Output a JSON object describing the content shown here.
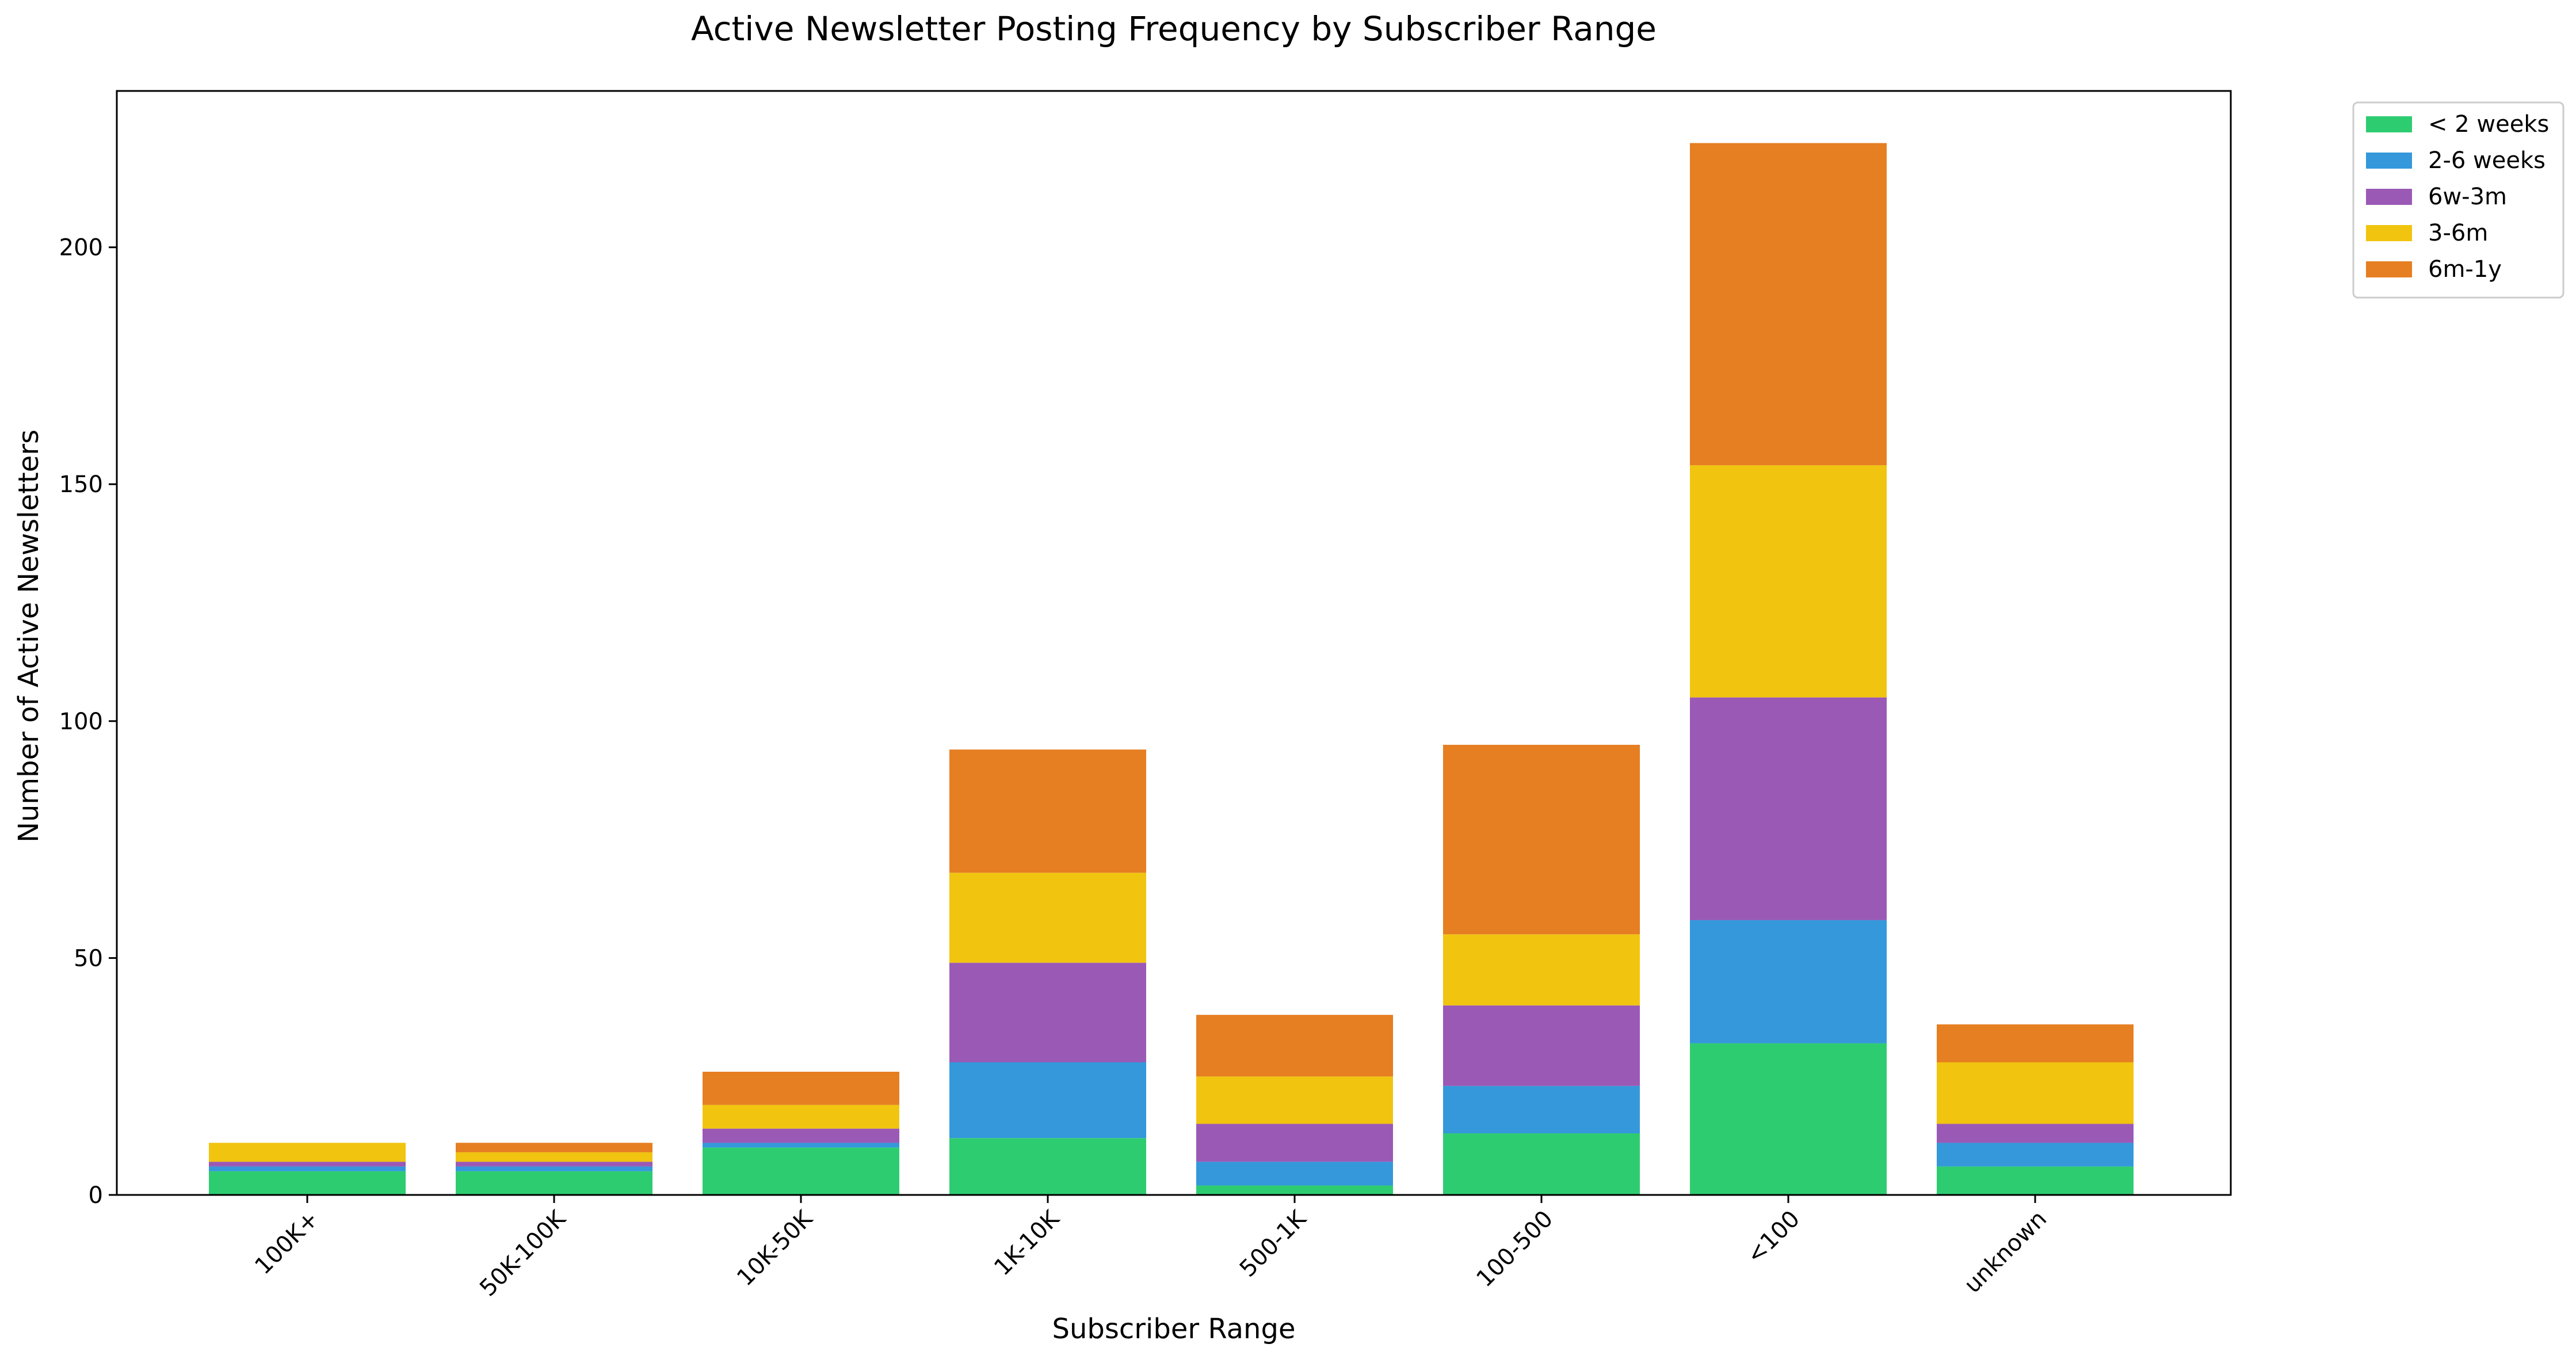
{
  "chart_data": {
    "type": "bar",
    "stacked": true,
    "title": "Active Newsletter Posting Frequency by Subscriber Range",
    "xlabel": "Subscriber Range",
    "ylabel": "Number of Active Newsletters",
    "categories": [
      "100K+",
      "50K-100K",
      "10K-50K",
      "1K-10K",
      "500-1K",
      "100-500",
      "<100",
      "unknown"
    ],
    "series": [
      {
        "name": "< 2 weeks",
        "color": "#2ecc71",
        "values": [
          5,
          5,
          10,
          12,
          2,
          13,
          32,
          6
        ]
      },
      {
        "name": "2-6 weeks",
        "color": "#3498db",
        "values": [
          1,
          1,
          1,
          16,
          5,
          10,
          26,
          5
        ]
      },
      {
        "name": "6w-3m",
        "color": "#9b59b6",
        "values": [
          1,
          1,
          3,
          21,
          8,
          17,
          47,
          4
        ]
      },
      {
        "name": "3-6m",
        "color": "#f1c40f",
        "values": [
          4,
          2,
          5,
          19,
          10,
          15,
          49,
          13
        ]
      },
      {
        "name": "6m-1y",
        "color": "#e67e22",
        "values": [
          0,
          2,
          7,
          26,
          13,
          40,
          68,
          8
        ]
      }
    ],
    "ylim": [
      0,
      233
    ],
    "yticks": [
      0,
      50,
      100,
      150,
      200
    ],
    "grid": false,
    "legend_position": "outside-top-right"
  }
}
